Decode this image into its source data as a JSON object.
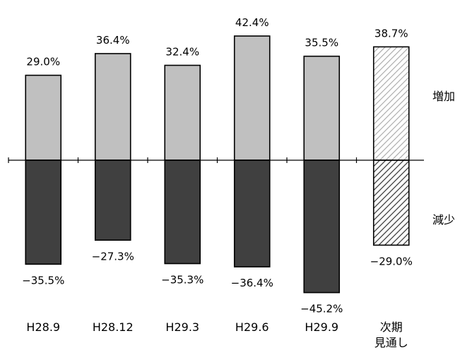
{
  "chart_data": {
    "type": "bar",
    "categories": [
      "H28.9",
      "H28.12",
      "H29.3",
      "H29.6",
      "H29.9",
      "次期\n見通し"
    ],
    "series": [
      {
        "name": "増加",
        "values": [
          29.0,
          36.4,
          32.4,
          42.4,
          35.5,
          38.7
        ]
      },
      {
        "name": "減少",
        "values": [
          -35.5,
          -27.3,
          -35.3,
          -36.4,
          -45.2,
          -29.0
        ]
      }
    ],
    "data_labels": {
      "increase": [
        "29.0%",
        "36.4%",
        "32.4%",
        "42.4%",
        "35.5%",
        "38.7%"
      ],
      "decrease": [
        "−35.5%",
        "−27.3%",
        "−35.3%",
        "−36.4%",
        "−45.2%",
        "−29.0%"
      ]
    },
    "side_labels": {
      "increase": "増加",
      "decrease": "減少"
    },
    "forecast_index": 5,
    "ylim": [
      -50,
      50
    ],
    "grid": false,
    "legend": "right",
    "colors": {
      "increase": "#c0c0c0",
      "decrease": "#404040",
      "bar_border": "#000000",
      "forecast_increase_hatch": "#a6a6a6",
      "forecast_decrease_hatch": "#333333"
    },
    "title": "",
    "xlabel": "",
    "ylabel": ""
  }
}
